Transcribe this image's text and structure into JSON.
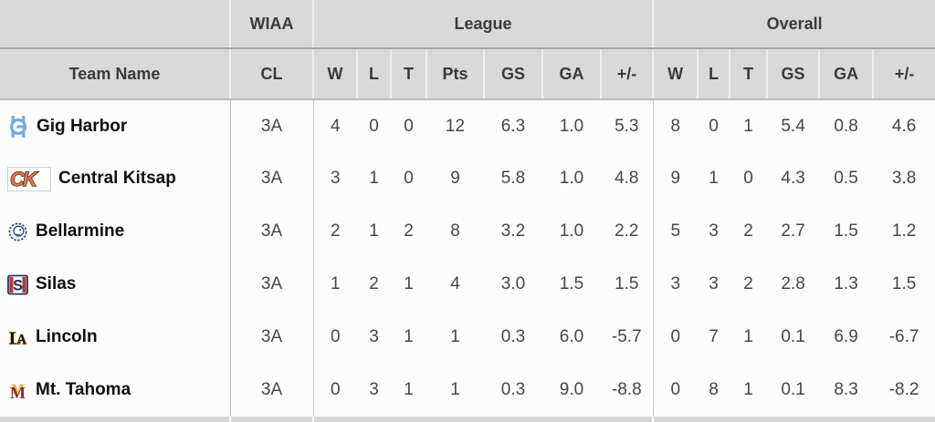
{
  "colors": {
    "header_bg": "#d9d9d9",
    "header_text": "#3a3a3a",
    "data_text": "#474747",
    "team_text": "#101010",
    "divider": "#c5c5c5",
    "gig_harbor_blue": "#76abdb",
    "central_kitsap_orange": "#e4724b",
    "bellarmine_navy": "#31436e",
    "silas_red": "#b23a3f",
    "silas_navy": "#22305c",
    "lincoln_gold": "#c69d3c",
    "mt_tahoma_maroon": "#8e2a35",
    "mt_tahoma_gold": "#e7b13c"
  },
  "header": {
    "groups": [
      {
        "label": "",
        "span": 1
      },
      {
        "label": "WIAA",
        "span": 1
      },
      {
        "label": "League",
        "span": 7
      },
      {
        "label": "Overall",
        "span": 6
      }
    ],
    "columns": [
      "Team Name",
      "CL",
      "W",
      "L",
      "T",
      "Pts",
      "GS",
      "GA",
      "+/-",
      "W",
      "L",
      "T",
      "GS",
      "GA",
      "+/-"
    ]
  },
  "teams": [
    {
      "name": "Gig Harbor",
      "logo": "gig-harbor-logo",
      "cl": "3A",
      "league": {
        "w": "4",
        "l": "0",
        "t": "0",
        "pts": "12",
        "gs": "6.3",
        "ga": "1.0",
        "plus_minus": "5.3"
      },
      "overall": {
        "w": "8",
        "l": "0",
        "t": "1",
        "gs": "5.4",
        "ga": "0.8",
        "plus_minus": "4.6"
      }
    },
    {
      "name": "Central Kitsap",
      "logo": "central-kitsap-logo",
      "cl": "3A",
      "league": {
        "w": "3",
        "l": "1",
        "t": "0",
        "pts": "9",
        "gs": "5.8",
        "ga": "1.0",
        "plus_minus": "4.8"
      },
      "overall": {
        "w": "9",
        "l": "1",
        "t": "0",
        "gs": "4.3",
        "ga": "0.5",
        "plus_minus": "3.8"
      }
    },
    {
      "name": "Bellarmine",
      "logo": "bellarmine-logo",
      "cl": "3A",
      "league": {
        "w": "2",
        "l": "1",
        "t": "2",
        "pts": "8",
        "gs": "3.2",
        "ga": "1.0",
        "plus_minus": "2.2"
      },
      "overall": {
        "w": "5",
        "l": "3",
        "t": "2",
        "gs": "2.7",
        "ga": "1.5",
        "plus_minus": "1.2"
      }
    },
    {
      "name": "Silas",
      "logo": "silas-logo",
      "cl": "3A",
      "league": {
        "w": "1",
        "l": "2",
        "t": "1",
        "pts": "4",
        "gs": "3.0",
        "ga": "1.5",
        "plus_minus": "1.5"
      },
      "overall": {
        "w": "3",
        "l": "3",
        "t": "2",
        "gs": "2.8",
        "ga": "1.3",
        "plus_minus": "1.5"
      }
    },
    {
      "name": "Lincoln",
      "logo": "lincoln-logo",
      "cl": "3A",
      "league": {
        "w": "0",
        "l": "3",
        "t": "1",
        "pts": "1",
        "gs": "0.3",
        "ga": "6.0",
        "plus_minus": "-5.7"
      },
      "overall": {
        "w": "0",
        "l": "7",
        "t": "1",
        "gs": "0.1",
        "ga": "6.9",
        "plus_minus": "-6.7"
      }
    },
    {
      "name": "Mt. Tahoma",
      "logo": "mt-tahoma-logo",
      "cl": "3A",
      "league": {
        "w": "0",
        "l": "3",
        "t": "1",
        "pts": "1",
        "gs": "0.3",
        "ga": "9.0",
        "plus_minus": "-8.8"
      },
      "overall": {
        "w": "0",
        "l": "8",
        "t": "1",
        "gs": "0.1",
        "ga": "8.3",
        "plus_minus": "-8.2"
      }
    }
  ]
}
